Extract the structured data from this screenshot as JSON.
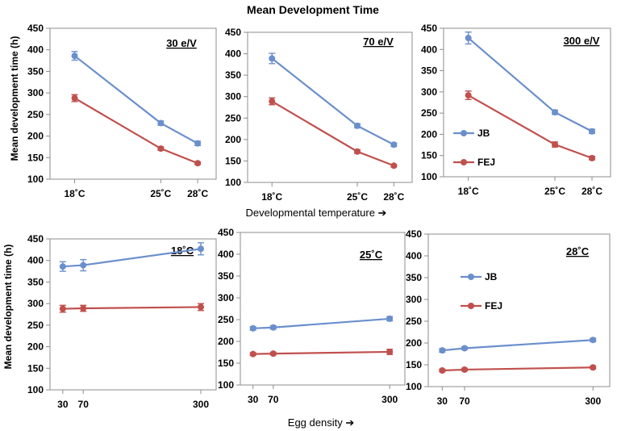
{
  "figure": {
    "title": "Mean Development Time",
    "xlabel_top": "Developmental temperature ➔",
    "xlabel_bottom": "Egg density ➔",
    "ylabel": "Mean development time (h)"
  },
  "colors": {
    "JB": "#6b8fcc",
    "FEJ": "#c0504d"
  },
  "chart_data": [
    {
      "type": "line",
      "title": "30 e/V",
      "xlabel": "Developmental temperature",
      "ylabel": "Mean development time (h)",
      "x": [
        18,
        25,
        28
      ],
      "x_ticks": [
        "18˚C",
        "25˚C",
        "28˚C"
      ],
      "xlim": [
        16,
        29.5
      ],
      "ylim": [
        100,
        450
      ],
      "y_ticks": [
        "100",
        "150",
        "200",
        "250",
        "300",
        "350",
        "400",
        "450"
      ],
      "series": [
        {
          "name": "JB",
          "values": [
            386,
            230,
            183
          ],
          "errors": [
            10,
            5,
            5
          ]
        },
        {
          "name": "FEJ",
          "values": [
            288,
            171,
            137
          ],
          "errors": [
            8,
            4,
            3
          ]
        }
      ]
    },
    {
      "type": "line",
      "title": "70 e/V",
      "xlabel": "Developmental temperature",
      "ylabel": "Mean development time (h)",
      "x": [
        18,
        25,
        28
      ],
      "x_ticks": [
        "18˚C",
        "25˚C",
        "28˚C"
      ],
      "xlim": [
        16,
        29.5
      ],
      "ylim": [
        100,
        450
      ],
      "y_ticks": [
        "100",
        "150",
        "200",
        "250",
        "300",
        "350",
        "400",
        "450"
      ],
      "series": [
        {
          "name": "JB",
          "values": [
            389,
            232,
            188
          ],
          "errors": [
            12,
            5,
            4
          ]
        },
        {
          "name": "FEJ",
          "values": [
            289,
            172,
            139
          ],
          "errors": [
            8,
            4,
            3
          ]
        }
      ]
    },
    {
      "type": "line",
      "title": "300 e/V",
      "xlabel": "Developmental temperature",
      "ylabel": "Mean development time (h)",
      "x": [
        18,
        25,
        28
      ],
      "x_ticks": [
        "18˚C",
        "25˚C",
        "28˚C"
      ],
      "xlim": [
        16,
        29.5
      ],
      "ylim": [
        100,
        450
      ],
      "y_ticks": [
        "100",
        "150",
        "200",
        "250",
        "300",
        "350",
        "400",
        "450"
      ],
      "legend": [
        "JB",
        "FEJ"
      ],
      "series": [
        {
          "name": "JB",
          "values": [
            427,
            252,
            207
          ],
          "errors": [
            14,
            5,
            5
          ]
        },
        {
          "name": "FEJ",
          "values": [
            292,
            176,
            144
          ],
          "errors": [
            10,
            6,
            4
          ]
        }
      ]
    },
    {
      "type": "line",
      "title": "18˚C",
      "xlabel": "Egg density",
      "ylabel": "Mean development time (h)",
      "x": [
        30,
        70,
        300
      ],
      "x_ticks": [
        "30",
        "70",
        "300"
      ],
      "xlim": [
        5,
        330
      ],
      "ylim": [
        100,
        450
      ],
      "y_ticks": [
        "100",
        "150",
        "200",
        "250",
        "300",
        "350",
        "400",
        "450"
      ],
      "series": [
        {
          "name": "JB",
          "values": [
            386,
            389,
            427
          ],
          "errors": [
            11,
            13,
            14
          ]
        },
        {
          "name": "FEJ",
          "values": [
            288,
            289,
            292
          ],
          "errors": [
            8,
            7,
            8
          ]
        }
      ]
    },
    {
      "type": "line",
      "title": "25˚C",
      "xlabel": "Egg density",
      "ylabel": "Mean development time (h)",
      "x": [
        30,
        70,
        300
      ],
      "x_ticks": [
        "30",
        "70",
        "300"
      ],
      "xlim": [
        5,
        330
      ],
      "ylim": [
        100,
        450
      ],
      "y_ticks": [
        "100",
        "150",
        "200",
        "250",
        "300",
        "350",
        "400",
        "450"
      ],
      "series": [
        {
          "name": "JB",
          "values": [
            230,
            232,
            252
          ],
          "errors": [
            4,
            4,
            5
          ]
        },
        {
          "name": "FEJ",
          "values": [
            171,
            172,
            176
          ],
          "errors": [
            3,
            3,
            6
          ]
        }
      ]
    },
    {
      "type": "line",
      "title": "28˚C",
      "xlabel": "Egg density",
      "ylabel": "Mean development time (h)",
      "x": [
        30,
        70,
        300
      ],
      "x_ticks": [
        "30",
        "70",
        "300"
      ],
      "xlim": [
        5,
        330
      ],
      "ylim": [
        100,
        450
      ],
      "y_ticks": [
        "100",
        "150",
        "200",
        "250",
        "300",
        "350",
        "400",
        "450"
      ],
      "legend": [
        "JB",
        "FEJ"
      ],
      "series": [
        {
          "name": "JB",
          "values": [
            183,
            188,
            207
          ],
          "errors": [
            4,
            3,
            4
          ]
        },
        {
          "name": "FEJ",
          "values": [
            137,
            139,
            144
          ],
          "errors": [
            3,
            3,
            3
          ]
        }
      ]
    }
  ]
}
